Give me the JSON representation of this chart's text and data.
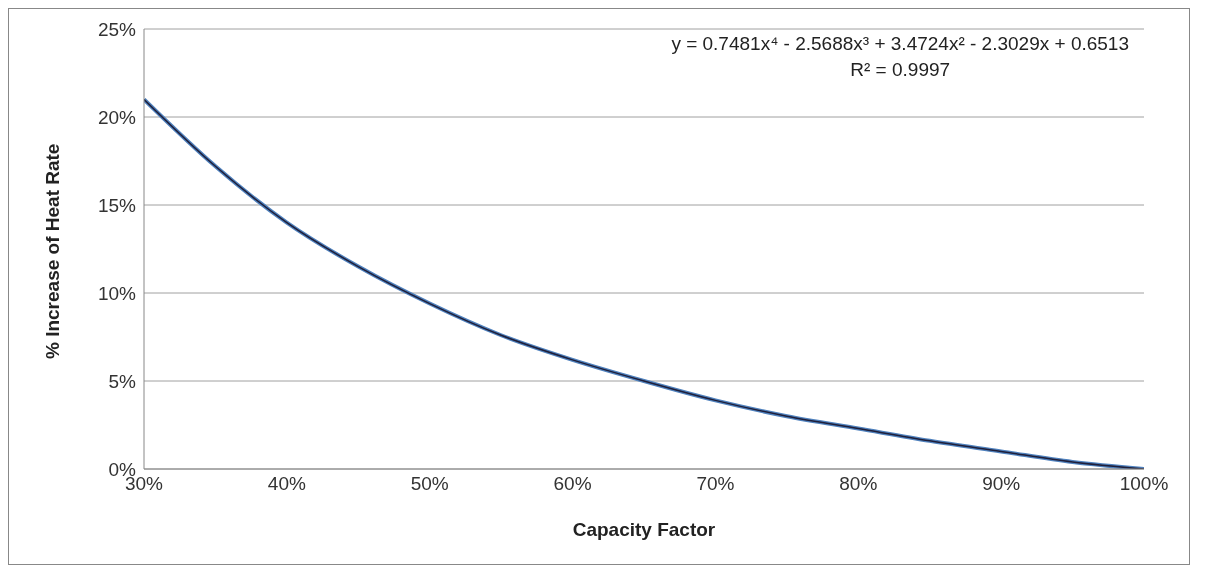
{
  "chart_data": {
    "type": "line",
    "xlabel": "Capacity Factor",
    "ylabel": "% Increase of Heat Rate",
    "annotations": [
      "y = 0.7481x⁴ - 2.5688x³ + 3.4724x² - 2.3029x + 0.6513",
      "R² = 0.9997"
    ],
    "series": [
      {
        "color": "#4f81bd",
        "x": [
          30,
          35,
          40,
          45,
          50,
          55,
          60,
          65,
          70,
          75,
          80,
          85,
          90,
          95,
          100
        ],
        "values": [
          21.0,
          17.2,
          14.0,
          11.5,
          9.4,
          7.6,
          6.2,
          5.0,
          3.9,
          3.0,
          2.3,
          1.6,
          1.0,
          0.4,
          0
        ]
      },
      {
        "type": "line",
        "color": "#1f1f3a",
        "x": [
          30,
          35,
          40,
          45,
          50,
          55,
          60,
          65,
          70,
          75,
          80,
          85,
          90,
          95,
          100
        ],
        "values": [
          21.0,
          17.2,
          14.0,
          11.5,
          9.4,
          7.6,
          6.2,
          5.0,
          3.9,
          3.0,
          2.3,
          1.6,
          1.0,
          0.4,
          0
        ]
      }
    ],
    "xlim": [
      30,
      100
    ],
    "ylim": [
      0,
      25
    ],
    "xticks": [
      {
        "value": 30,
        "label": "30%"
      },
      {
        "value": 40,
        "label": "40%"
      },
      {
        "value": 50,
        "label": "50%"
      },
      {
        "value": 60,
        "label": "60%"
      },
      {
        "value": 70,
        "label": "70%"
      },
      {
        "value": 80,
        "label": "80%"
      },
      {
        "value": 90,
        "label": "90%"
      },
      {
        "value": 100,
        "label": "100%"
      }
    ],
    "yticks": [
      {
        "value": 0,
        "label": "0%"
      },
      {
        "value": 5,
        "label": "5%"
      },
      {
        "value": 10,
        "label": "10%"
      },
      {
        "value": 15,
        "label": "15%"
      },
      {
        "value": 20,
        "label": "20%"
      },
      {
        "value": 25,
        "label": "25%"
      }
    ],
    "grid": "y",
    "marker": "none",
    "line_style": "solid"
  }
}
